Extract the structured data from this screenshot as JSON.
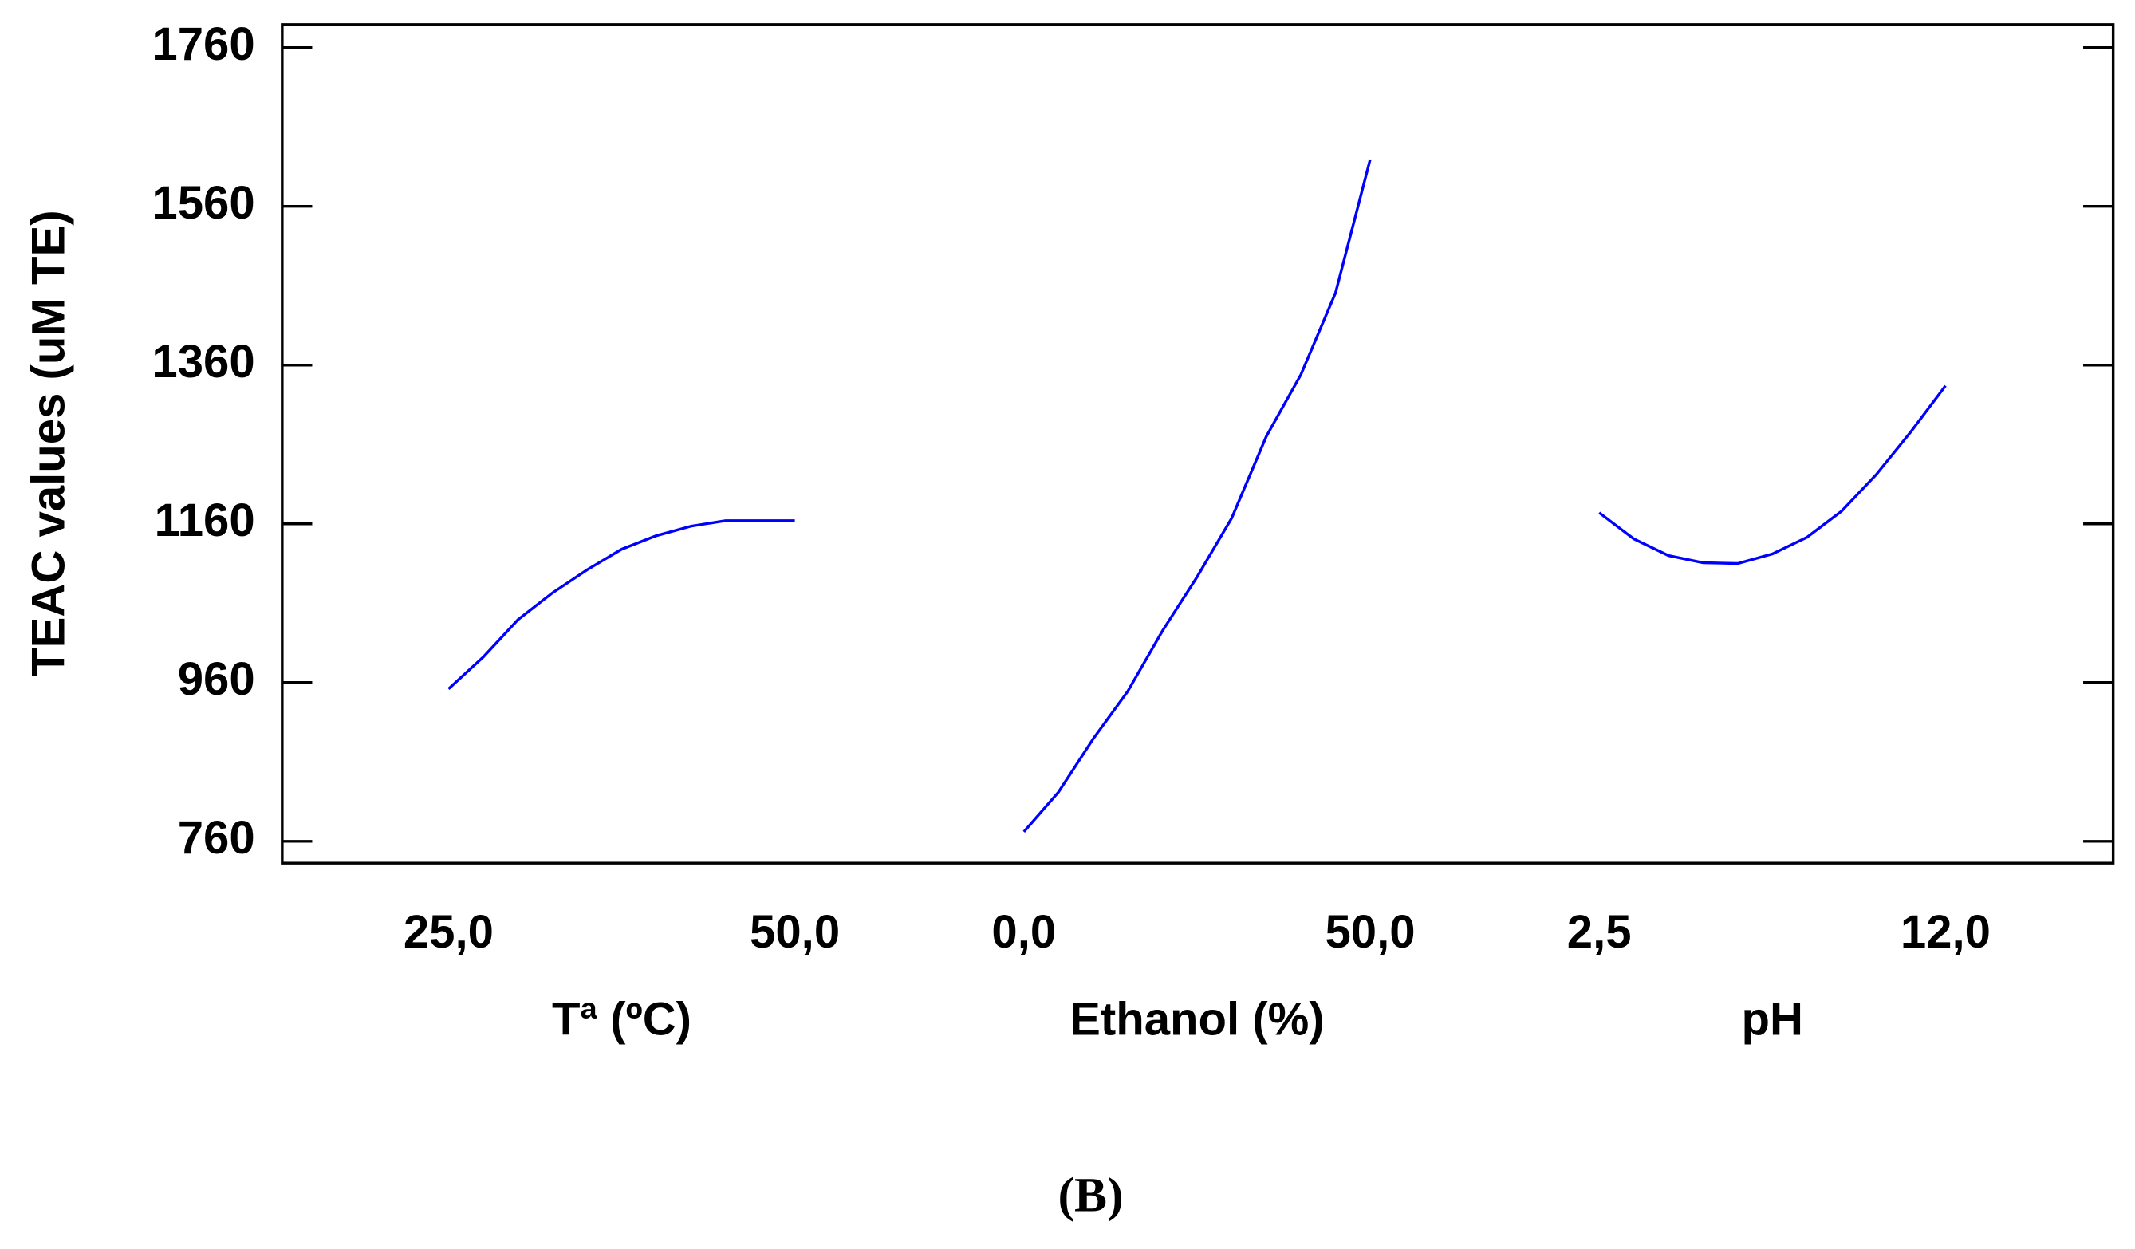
{
  "chart_data": {
    "type": "line",
    "ylabel": "TEAC values (uM TE)",
    "caption": "(B)",
    "color": "#0000ff",
    "ylim": [
      732.5,
      1789
    ],
    "yticks": [
      760,
      960,
      1160,
      1360,
      1560,
      1760
    ],
    "panels": [
      {
        "xlabel": "Tª (ºC)",
        "xlim": [
          25,
          50
        ],
        "xticks": [
          {
            "value": 25,
            "label": "25,0"
          },
          {
            "value": 50,
            "label": "50,0"
          }
        ],
        "x": [
          25,
          27.5,
          30,
          32.5,
          35,
          37.5,
          40,
          42.5,
          45,
          47.5,
          50
        ],
        "values": [
          952,
          992,
          1039,
          1073,
          1102,
          1128,
          1145,
          1157,
          1164,
          1164,
          1164
        ]
      },
      {
        "xlabel": "Ethanol (%)",
        "xlim": [
          0,
          50
        ],
        "xticks": [
          {
            "value": 0,
            "label": "0,0"
          },
          {
            "value": 50,
            "label": "50,0"
          }
        ],
        "x": [
          0,
          5,
          10,
          15,
          20,
          25,
          30,
          35,
          40,
          45,
          50
        ],
        "values": [
          772,
          822,
          889,
          949,
          1025,
          1093,
          1167,
          1270,
          1348,
          1451,
          1619
        ]
      },
      {
        "xlabel": "pH",
        "xlim": [
          2.5,
          12
        ],
        "xticks": [
          {
            "value": 2.5,
            "label": "2,5"
          },
          {
            "value": 12,
            "label": "12,0"
          }
        ],
        "x": [
          2.5,
          3.45,
          4.4,
          5.35,
          6.3,
          7.25,
          8.2,
          9.15,
          10.1,
          11.05,
          12
        ],
        "values": [
          1174,
          1141,
          1120,
          1111,
          1110,
          1122,
          1143,
          1176,
          1222,
          1276,
          1334
        ]
      }
    ]
  }
}
